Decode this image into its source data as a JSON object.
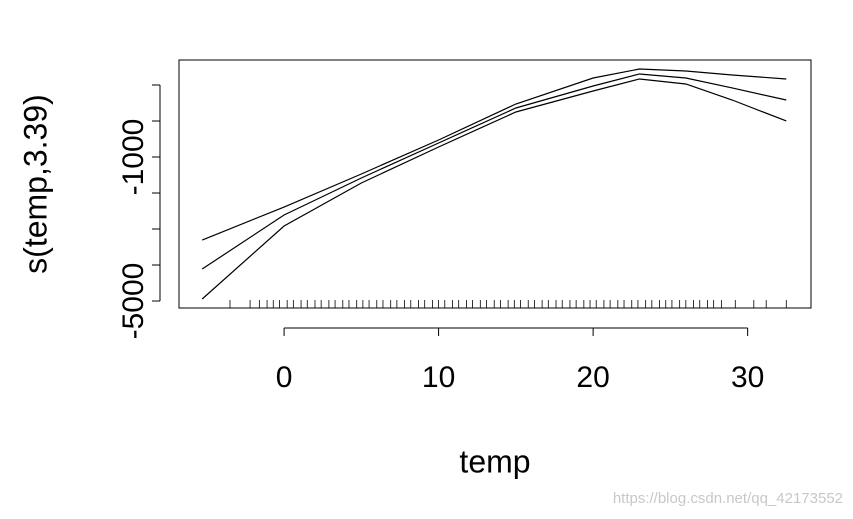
{
  "chart_data": {
    "type": "line",
    "x_label": "temp",
    "y_label": "s(temp,3.39)",
    "x": [
      -5.3,
      0,
      5,
      10,
      15,
      20,
      23,
      26,
      29,
      32.5
    ],
    "series": [
      {
        "color": "#000000",
        "values": [
          -3306,
          -2389,
          -1472,
          -528,
          472,
          1194,
          1444,
          1389,
          1278,
          1167
        ]
      },
      {
        "color": "#000000",
        "values": [
          -4111,
          -2611,
          -1583,
          -611,
          361,
          972,
          1306,
          1194,
          917,
          583
        ]
      },
      {
        "color": "#000000",
        "values": [
          -4944,
          -2917,
          -1722,
          -722,
          250,
          833,
          1167,
          1028,
          583,
          0
        ]
      }
    ],
    "rug": [
      -3.5,
      -2.2,
      -1.6,
      -1.1,
      -0.7,
      -0.3,
      0.2,
      0.6,
      1.1,
      1.5,
      2.0,
      2.4,
      2.9,
      3.3,
      3.8,
      4.2,
      4.7,
      5.1,
      5.5,
      6.0,
      6.4,
      6.9,
      7.3,
      7.8,
      8.2,
      8.7,
      9.1,
      9.6,
      10.0,
      10.4,
      10.9,
      11.3,
      11.8,
      12.2,
      12.7,
      13.1,
      13.6,
      14.0,
      14.5,
      14.9,
      15.3,
      15.8,
      16.2,
      16.7,
      17.1,
      17.6,
      18.0,
      18.5,
      18.9,
      19.4,
      19.8,
      20.2,
      20.7,
      21.1,
      21.6,
      22.0,
      22.5,
      22.9,
      23.4,
      23.8,
      24.3,
      24.7,
      25.1,
      25.6,
      26.0,
      26.5,
      26.9,
      27.4,
      27.8,
      28.3,
      29.2,
      30.4,
      31.2,
      32.5
    ],
    "xlim": [
      -6.8,
      34.1
    ],
    "xticks": [
      0,
      10,
      20,
      30
    ],
    "ylim": [
      -5194,
      1694
    ],
    "yticks": [
      -5000,
      -4000,
      -3000,
      -2000,
      -1000,
      0,
      1000
    ],
    "ytick_labels": [
      -5000,
      -1000
    ],
    "watermark": "https://blog.csdn.net/qq_42173552"
  }
}
